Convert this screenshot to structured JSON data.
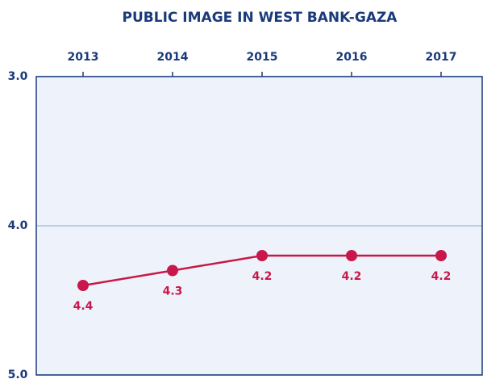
{
  "chart_data": {
    "type": "line",
    "title": "PUBLIC IMAGE IN WEST BANK-GAZA",
    "categories": [
      "2013",
      "2014",
      "2015",
      "2016",
      "2017"
    ],
    "series": [
      {
        "name": "West Bank-Gaza",
        "color": "#c8174a",
        "values": [
          4.4,
          4.3,
          4.2,
          4.2,
          4.2
        ]
      }
    ],
    "ylim": [
      5,
      3
    ],
    "yticks": [
      {
        "value": 3,
        "label": "3.0"
      },
      {
        "value": 4,
        "label": "4.0"
      },
      {
        "value": 5,
        "label": "5.0"
      }
    ],
    "grid": true
  }
}
